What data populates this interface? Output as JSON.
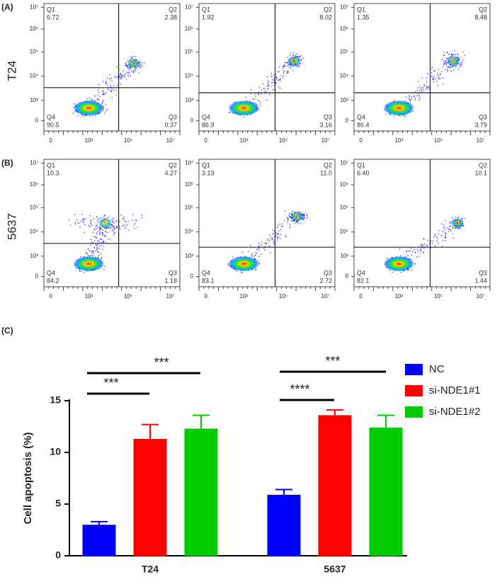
{
  "flow_panels": [
    {
      "label": "(A)",
      "row_label": "T24",
      "plots": [
        {
          "quadrants": [
            {
              "name": "Q1",
              "value": "6.72"
            },
            {
              "name": "Q2",
              "value": "2.38"
            },
            {
              "name": "Q3",
              "value": "0.37"
            },
            {
              "name": "Q4",
              "value": "90.5"
            }
          ]
        },
        {
          "quadrants": [
            {
              "name": "Q1",
              "value": "1.92"
            },
            {
              "name": "Q2",
              "value": "8.02"
            },
            {
              "name": "Q3",
              "value": "3.16"
            },
            {
              "name": "Q4",
              "value": "86.9"
            }
          ]
        },
        {
          "quadrants": [
            {
              "name": "Q1",
              "value": "1.35"
            },
            {
              "name": "Q2",
              "value": "8.48"
            },
            {
              "name": "Q3",
              "value": "3.79"
            },
            {
              "name": "Q4",
              "value": "86.4"
            }
          ]
        }
      ]
    },
    {
      "label": "(B)",
      "row_label": "5637",
      "plots": [
        {
          "quadrants": [
            {
              "name": "Q1",
              "value": "10.3"
            },
            {
              "name": "Q2",
              "value": "4.27"
            },
            {
              "name": "Q3",
              "value": "1.18"
            },
            {
              "name": "Q4",
              "value": "84.2"
            }
          ]
        },
        {
          "quadrants": [
            {
              "name": "Q1",
              "value": "3.13"
            },
            {
              "name": "Q2",
              "value": "11.0"
            },
            {
              "name": "Q3",
              "value": "2.72"
            },
            {
              "name": "Q4",
              "value": "83.1"
            }
          ]
        },
        {
          "quadrants": [
            {
              "name": "Q1",
              "value": "6.40"
            },
            {
              "name": "Q2",
              "value": "10.1"
            },
            {
              "name": "Q3",
              "value": "1.44"
            },
            {
              "name": "Q4",
              "value": "82.1"
            }
          ]
        }
      ]
    }
  ],
  "flow_axis": {
    "y_labels": [
      "10⁷",
      "10⁶",
      "10⁵",
      "10⁴",
      "10³",
      "0"
    ],
    "x_labels": [
      "0",
      "10³",
      "10⁵",
      "10⁷"
    ]
  },
  "chart_data": {
    "type": "bar",
    "panel_label": "(C)",
    "y_label": "Cell apoptosis (%)",
    "categories": [
      "T24",
      "5637"
    ],
    "series": [
      {
        "name": "NC",
        "color": "#0000ff",
        "values": [
          3.0,
          5.9
        ],
        "errors": [
          0.3,
          0.5
        ]
      },
      {
        "name": "si-NDE1#1",
        "color": "#ff0000",
        "values": [
          11.3,
          13.6
        ],
        "errors": [
          1.4,
          0.5
        ]
      },
      {
        "name": "si-NDE1#2",
        "color": "#00cc00",
        "values": [
          12.3,
          12.4
        ],
        "errors": [
          1.3,
          1.2
        ]
      }
    ],
    "ylim": [
      0,
      15
    ],
    "yticks": [
      0,
      5,
      10,
      15
    ],
    "annotations": [
      "***",
      "***",
      "***",
      "****"
    ],
    "legend": "right"
  }
}
